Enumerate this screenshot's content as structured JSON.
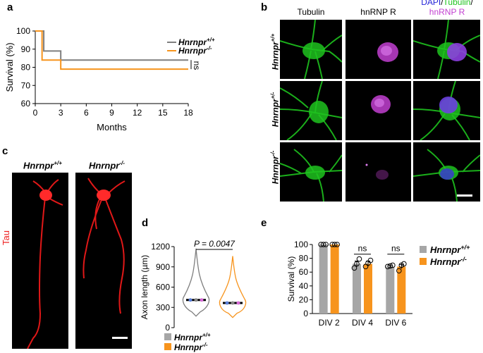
{
  "panels": {
    "a": {
      "label": "a",
      "chart_data": {
        "type": "line",
        "title": "",
        "xlabel": "Months",
        "ylabel": "Survival (%)",
        "xlim": [
          0,
          18
        ],
        "ylim": [
          60,
          100
        ],
        "xticks": [
          0,
          3,
          6,
          9,
          12,
          15,
          18
        ],
        "yticks": [
          60,
          70,
          80,
          90,
          100
        ],
        "legend_position": "right",
        "series": [
          {
            "name": "Hnrnpr+/+",
            "color": "#7f7f7f",
            "x": [
              0,
              1,
              1,
              3,
              3,
              18
            ],
            "y": [
              100,
              100,
              89,
              89,
              84,
              84
            ]
          },
          {
            "name": "Hnrnpr-/-",
            "color": "#f7941d",
            "x": [
              0,
              0.8,
              0.8,
              3,
              3,
              18
            ],
            "y": [
              100,
              100,
              84,
              84,
              79,
              79
            ]
          }
        ],
        "annotation": "ns"
      },
      "legend": [
        {
          "base": "Hnrnpr",
          "sup": "+/+",
          "color": "#7f7f7f"
        },
        {
          "base": "Hnrnpr",
          "sup": "-/-",
          "color": "#f7941d"
        }
      ]
    },
    "b": {
      "label": "b",
      "columns": [
        {
          "text": "Tubulin",
          "color": "#1ec31e"
        },
        {
          "text": "hnRNP R",
          "color": "#c23fd1"
        }
      ],
      "merged_title": {
        "dapi": "DAPI",
        "sep1": "/",
        "tubulin": "Tubulin",
        "sep2": "/",
        "hnrnpr": "hnRNP R"
      },
      "rows": [
        {
          "base": "Hnrnpr",
          "sup": "+/+"
        },
        {
          "base": "Hnrnpr",
          "sup": "+/-"
        },
        {
          "base": "Hnrnpr",
          "sup": "-/-"
        }
      ]
    },
    "c": {
      "label": "c",
      "side_label": "Tau",
      "images": [
        {
          "base": "Hnrnpr",
          "sup": "+/+"
        },
        {
          "base": "Hnrnpr",
          "sup": "-/-"
        }
      ]
    },
    "d": {
      "label": "d",
      "chart_data": {
        "type": "violin",
        "ylabel": "Axon length (µm)",
        "ylim": [
          0,
          1200
        ],
        "yticks": [
          0,
          300,
          600,
          900,
          1200
        ],
        "series": [
          {
            "name": "Hnrnpr+/+",
            "color": "#7f7f7f",
            "mean": 410,
            "median": 400,
            "max": 1170,
            "min": 170
          },
          {
            "name": "Hnrnpr-/-",
            "color": "#f7941d",
            "mean": 365,
            "median": 360,
            "max": 1060,
            "min": 150
          }
        ],
        "annotation": "P = 0.0047"
      },
      "legend": [
        {
          "base": "Hnrnpr",
          "sup": "+/+",
          "color": "#a6a6a6"
        },
        {
          "base": "Hnrnpr",
          "sup": "-/-",
          "color": "#f7941d"
        }
      ]
    },
    "e": {
      "label": "e",
      "chart_data": {
        "type": "bar",
        "ylabel": "Survival (%)",
        "ylim": [
          0,
          100
        ],
        "yticks": [
          0,
          20,
          40,
          60,
          80,
          100
        ],
        "categories": [
          "DIV 2",
          "DIV 4",
          "DIV 6"
        ],
        "series": [
          {
            "name": "Hnrnpr+/+",
            "color": "#a6a6a6",
            "values": [
              100,
              72,
              68
            ],
            "errors": [
              0,
              4,
              2
            ],
            "points": [
              [
                100,
                100,
                100
              ],
              [
                66,
                72,
                79
              ],
              [
                68,
                69,
                70
              ]
            ]
          },
          {
            "name": "Hnrnpr-/-",
            "color": "#f7941d",
            "values": [
              100,
              72,
              68
            ],
            "errors": [
              0,
              4,
              3
            ],
            "points": [
              [
                100,
                100,
                100
              ],
              [
                68,
                73,
                77
              ],
              [
                62,
                70,
                72
              ]
            ]
          }
        ],
        "significance": [
          "",
          "ns",
          "ns"
        ]
      },
      "legend": [
        {
          "base": "Hnrnpr",
          "sup": "+/+",
          "color": "#a6a6a6"
        },
        {
          "base": "Hnrnpr",
          "sup": "-/-",
          "color": "#f7941d"
        }
      ]
    }
  }
}
